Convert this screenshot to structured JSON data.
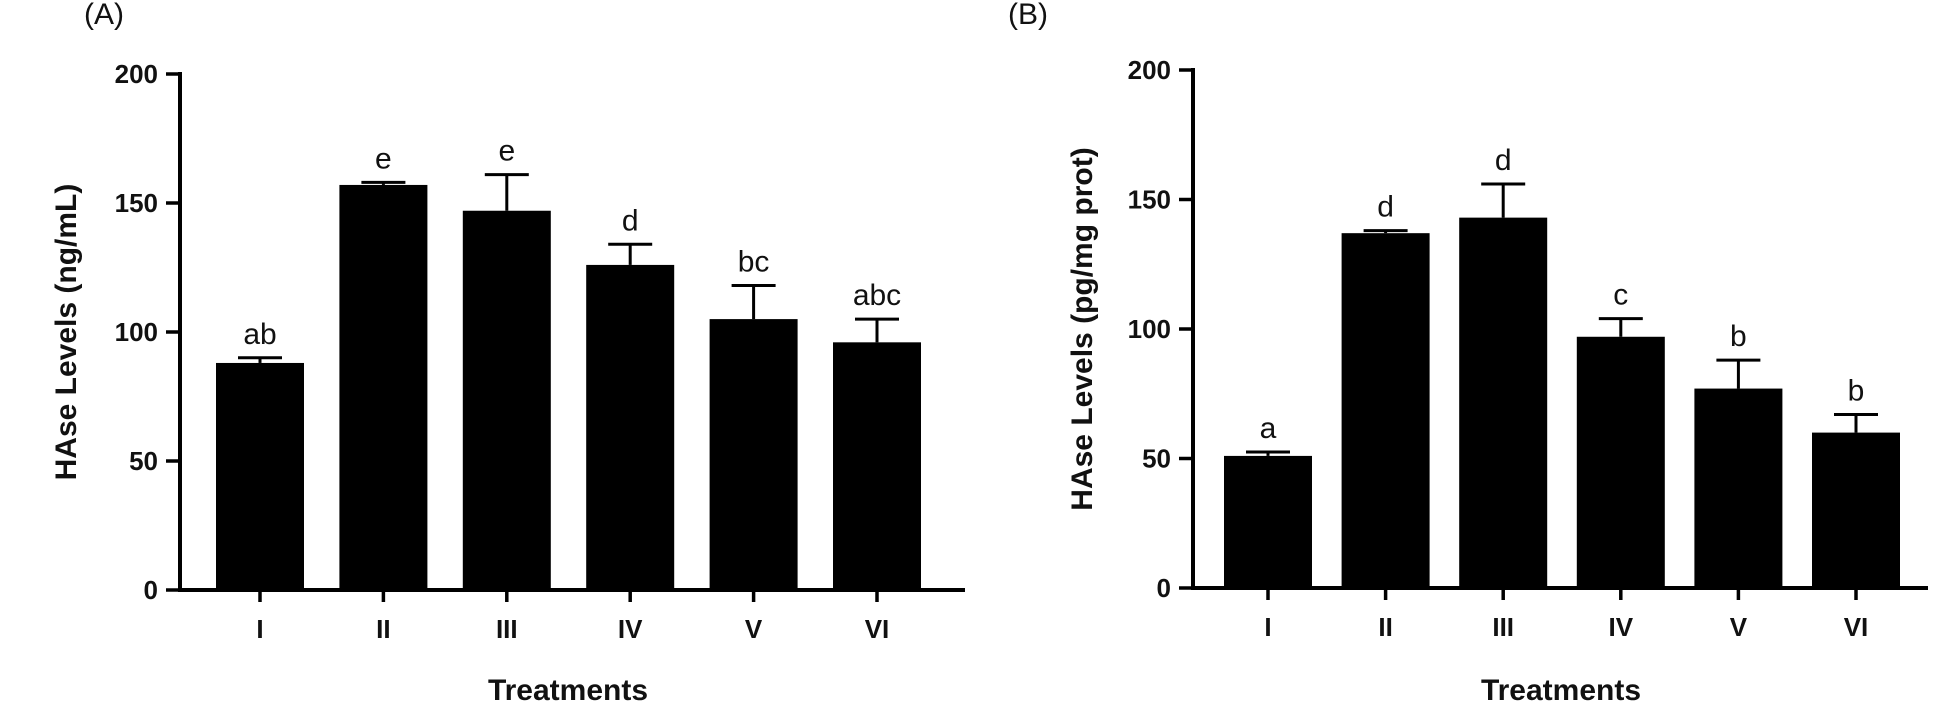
{
  "chart_data": [
    {
      "type": "bar",
      "panel_label": "(A)",
      "title": "",
      "xlabel": "Treatments",
      "ylabel": "HAse Levels (ng/mL)",
      "ylim": [
        0,
        200
      ],
      "yticks": [
        "0",
        "50",
        "100",
        "150",
        "200"
      ],
      "categories": [
        "I",
        "II",
        "III",
        "IV",
        "V",
        "VI"
      ],
      "values": [
        88,
        157,
        147,
        126,
        105,
        96
      ],
      "error": [
        2,
        1,
        14,
        8,
        13,
        9
      ],
      "significance": [
        "ab",
        "e",
        "e",
        "d",
        "bc",
        "abc"
      ],
      "bar_color": "#000000"
    },
    {
      "type": "bar",
      "panel_label": "(B)",
      "title": "",
      "xlabel": "Treatments",
      "ylabel": "HAse Levels (pg/mg prot)",
      "ylim": [
        0,
        200
      ],
      "yticks": [
        "0",
        "50",
        "100",
        "150",
        "200"
      ],
      "categories": [
        "I",
        "II",
        "III",
        "IV",
        "V",
        "VI"
      ],
      "values": [
        51,
        137,
        143,
        97,
        77,
        60
      ],
      "error": [
        1.5,
        1,
        13,
        7,
        11,
        7
      ],
      "significance": [
        "a",
        "d",
        "d",
        "c",
        "b",
        "b"
      ],
      "bar_color": "#000000"
    }
  ]
}
